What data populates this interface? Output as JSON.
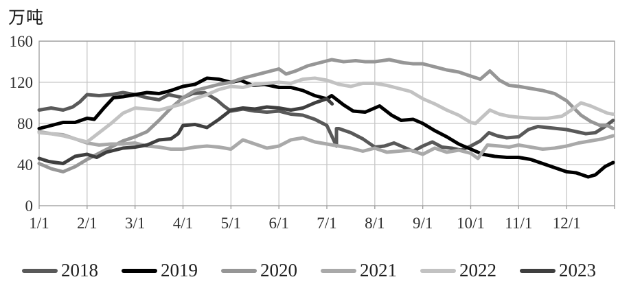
{
  "chart_data": {
    "type": "line",
    "unit_label": "万吨",
    "x_tick_labels": [
      "1/1",
      "2/1",
      "3/1",
      "4/1",
      "5/1",
      "6/1",
      "7/1",
      "8/1",
      "9/1",
      "10/1",
      "11/1",
      "12/1"
    ],
    "y_ticks": [
      0,
      40,
      80,
      120,
      160
    ],
    "ylim": [
      0,
      160
    ],
    "x_months": 12,
    "grid": true,
    "legend_position": "bottom",
    "axis_color": "#9a9a9a",
    "grid_color": "#c6c6c6",
    "tick_label_color": "#2e2e2e",
    "series": [
      {
        "name": "2018",
        "color": "#595959",
        "points": [
          [
            0,
            93
          ],
          [
            0.25,
            95
          ],
          [
            0.5,
            93
          ],
          [
            0.7,
            96
          ],
          [
            0.85,
            101
          ],
          [
            1.0,
            108
          ],
          [
            1.25,
            107
          ],
          [
            1.5,
            108
          ],
          [
            1.75,
            110
          ],
          [
            2.0,
            108
          ],
          [
            2.25,
            105
          ],
          [
            2.5,
            103
          ],
          [
            2.7,
            108
          ],
          [
            3.0,
            105
          ],
          [
            3.2,
            109
          ],
          [
            3.45,
            110
          ],
          [
            3.7,
            103
          ],
          [
            3.85,
            97
          ],
          [
            4.0,
            92
          ],
          [
            4.25,
            94
          ],
          [
            4.5,
            92
          ],
          [
            4.75,
            91
          ],
          [
            5.0,
            92
          ],
          [
            5.25,
            89
          ],
          [
            5.5,
            88
          ],
          [
            5.75,
            84
          ],
          [
            6.0,
            78
          ],
          [
            6.2,
            58
          ],
          [
            6.2,
            75
          ],
          [
            6.25,
            75
          ],
          [
            6.5,
            71
          ],
          [
            6.75,
            65
          ],
          [
            7.0,
            57
          ],
          [
            7.2,
            58
          ],
          [
            7.4,
            61
          ],
          [
            7.6,
            57
          ],
          [
            7.8,
            53
          ],
          [
            8.0,
            58
          ],
          [
            8.2,
            62
          ],
          [
            8.4,
            57
          ],
          [
            8.6,
            56
          ],
          [
            8.8,
            54
          ],
          [
            9.0,
            58
          ],
          [
            9.2,
            63
          ],
          [
            9.38,
            71
          ],
          [
            9.55,
            68
          ],
          [
            9.75,
            66
          ],
          [
            10.0,
            67
          ],
          [
            10.2,
            74
          ],
          [
            10.4,
            77
          ],
          [
            10.6,
            76
          ],
          [
            10.8,
            75
          ],
          [
            11.0,
            74
          ],
          [
            11.2,
            72
          ],
          [
            11.4,
            70
          ],
          [
            11.6,
            71
          ],
          [
            11.8,
            77
          ],
          [
            11.97,
            83
          ]
        ]
      },
      {
        "name": "2019",
        "color": "#000000",
        "points": [
          [
            0,
            75
          ],
          [
            0.25,
            78
          ],
          [
            0.5,
            81
          ],
          [
            0.75,
            81
          ],
          [
            1.0,
            85
          ],
          [
            1.15,
            84
          ],
          [
            1.35,
            95
          ],
          [
            1.55,
            105
          ],
          [
            1.75,
            106
          ],
          [
            2.0,
            108
          ],
          [
            2.25,
            110
          ],
          [
            2.5,
            109
          ],
          [
            2.75,
            112
          ],
          [
            3.0,
            116
          ],
          [
            3.25,
            118
          ],
          [
            3.5,
            124
          ],
          [
            3.75,
            123
          ],
          [
            4.0,
            120
          ],
          [
            4.2,
            122
          ],
          [
            4.45,
            117
          ],
          [
            4.7,
            118
          ],
          [
            5.0,
            115
          ],
          [
            5.25,
            115
          ],
          [
            5.5,
            112
          ],
          [
            5.75,
            107
          ],
          [
            6.0,
            104
          ],
          [
            6.1,
            107
          ],
          [
            6.35,
            98
          ],
          [
            6.55,
            92
          ],
          [
            6.8,
            91
          ],
          [
            7.0,
            95
          ],
          [
            7.1,
            97
          ],
          [
            7.35,
            88
          ],
          [
            7.55,
            83
          ],
          [
            7.8,
            84
          ],
          [
            8.0,
            80
          ],
          [
            8.25,
            73
          ],
          [
            8.5,
            67
          ],
          [
            8.75,
            60
          ],
          [
            9.0,
            55
          ],
          [
            9.25,
            50
          ],
          [
            9.5,
            48
          ],
          [
            9.75,
            47
          ],
          [
            10.0,
            47
          ],
          [
            10.25,
            45
          ],
          [
            10.5,
            41
          ],
          [
            10.75,
            37
          ],
          [
            11.0,
            33
          ],
          [
            11.2,
            32
          ],
          [
            11.45,
            28
          ],
          [
            11.6,
            30
          ],
          [
            11.8,
            38
          ],
          [
            11.97,
            42
          ]
        ]
      },
      {
        "name": "2020",
        "color": "#969696",
        "points": [
          [
            0,
            41
          ],
          [
            0.25,
            36
          ],
          [
            0.5,
            33
          ],
          [
            0.75,
            38
          ],
          [
            1.0,
            45
          ],
          [
            1.25,
            51
          ],
          [
            1.5,
            57
          ],
          [
            1.75,
            63
          ],
          [
            2.0,
            67
          ],
          [
            2.25,
            72
          ],
          [
            2.5,
            83
          ],
          [
            2.75,
            95
          ],
          [
            3.0,
            105
          ],
          [
            3.25,
            112
          ],
          [
            3.5,
            115
          ],
          [
            3.75,
            118
          ],
          [
            4.0,
            120
          ],
          [
            4.25,
            124
          ],
          [
            4.5,
            127
          ],
          [
            4.75,
            130
          ],
          [
            5.0,
            133
          ],
          [
            5.15,
            128
          ],
          [
            5.35,
            131
          ],
          [
            5.6,
            136
          ],
          [
            5.85,
            139
          ],
          [
            6.1,
            142
          ],
          [
            6.35,
            140
          ],
          [
            6.6,
            141
          ],
          [
            6.8,
            140
          ],
          [
            7.0,
            140
          ],
          [
            7.3,
            142
          ],
          [
            7.6,
            139
          ],
          [
            7.8,
            138
          ],
          [
            8.0,
            138
          ],
          [
            8.25,
            135
          ],
          [
            8.5,
            132
          ],
          [
            8.75,
            130
          ],
          [
            9.0,
            126
          ],
          [
            9.2,
            123
          ],
          [
            9.4,
            131
          ],
          [
            9.6,
            122
          ],
          [
            9.8,
            117
          ],
          [
            10.0,
            116
          ],
          [
            10.25,
            114
          ],
          [
            10.5,
            112
          ],
          [
            10.75,
            109
          ],
          [
            11.0,
            102
          ],
          [
            11.15,
            95
          ],
          [
            11.3,
            88
          ],
          [
            11.5,
            82
          ],
          [
            11.7,
            78
          ],
          [
            11.85,
            78
          ],
          [
            11.97,
            75
          ]
        ]
      },
      {
        "name": "2021",
        "color": "#a9a9a9",
        "points": [
          [
            0,
            72
          ],
          [
            0.25,
            70
          ],
          [
            0.5,
            69
          ],
          [
            0.75,
            65
          ],
          [
            1.0,
            61
          ],
          [
            1.25,
            59
          ],
          [
            1.5,
            60
          ],
          [
            1.75,
            60
          ],
          [
            2.0,
            61
          ],
          [
            2.25,
            58
          ],
          [
            2.5,
            57
          ],
          [
            2.75,
            55
          ],
          [
            3.0,
            55
          ],
          [
            3.25,
            57
          ],
          [
            3.5,
            58
          ],
          [
            3.75,
            57
          ],
          [
            4.0,
            55
          ],
          [
            4.25,
            64
          ],
          [
            4.5,
            60
          ],
          [
            4.75,
            56
          ],
          [
            5.0,
            58
          ],
          [
            5.25,
            64
          ],
          [
            5.5,
            66
          ],
          [
            5.75,
            62
          ],
          [
            6.0,
            60
          ],
          [
            6.25,
            58
          ],
          [
            6.5,
            56
          ],
          [
            6.75,
            53
          ],
          [
            7.0,
            56
          ],
          [
            7.25,
            52
          ],
          [
            7.5,
            53
          ],
          [
            7.75,
            54
          ],
          [
            8.0,
            50
          ],
          [
            8.25,
            56
          ],
          [
            8.5,
            52
          ],
          [
            8.75,
            54
          ],
          [
            9.0,
            51
          ],
          [
            9.15,
            46
          ],
          [
            9.35,
            59
          ],
          [
            9.6,
            58
          ],
          [
            9.8,
            57
          ],
          [
            10.0,
            59
          ],
          [
            10.25,
            57
          ],
          [
            10.5,
            55
          ],
          [
            10.75,
            56
          ],
          [
            11.0,
            58
          ],
          [
            11.25,
            61
          ],
          [
            11.5,
            63
          ],
          [
            11.75,
            65
          ],
          [
            11.97,
            68
          ]
        ]
      },
      {
        "name": "2022",
        "color": "#c2c2c2",
        "points": [
          [
            0,
            71
          ],
          [
            0.25,
            70
          ],
          [
            0.5,
            68
          ],
          [
            0.75,
            65
          ],
          [
            1.0,
            62
          ],
          [
            1.25,
            71
          ],
          [
            1.5,
            80
          ],
          [
            1.75,
            90
          ],
          [
            2.0,
            95
          ],
          [
            2.25,
            94
          ],
          [
            2.5,
            93
          ],
          [
            2.75,
            96
          ],
          [
            3.0,
            99
          ],
          [
            3.25,
            104
          ],
          [
            3.5,
            108
          ],
          [
            3.75,
            113
          ],
          [
            4.0,
            116
          ],
          [
            4.25,
            115
          ],
          [
            4.5,
            118
          ],
          [
            4.75,
            119
          ],
          [
            5.0,
            120
          ],
          [
            5.25,
            119
          ],
          [
            5.5,
            123
          ],
          [
            5.75,
            124
          ],
          [
            6.0,
            122
          ],
          [
            6.25,
            118
          ],
          [
            6.5,
            116
          ],
          [
            6.75,
            119
          ],
          [
            7.0,
            119
          ],
          [
            7.25,
            117
          ],
          [
            7.5,
            114
          ],
          [
            7.75,
            111
          ],
          [
            8.0,
            104
          ],
          [
            8.25,
            99
          ],
          [
            8.5,
            93
          ],
          [
            8.75,
            88
          ],
          [
            9.0,
            81
          ],
          [
            9.1,
            80
          ],
          [
            9.4,
            93
          ],
          [
            9.6,
            89
          ],
          [
            9.8,
            87
          ],
          [
            10.0,
            86
          ],
          [
            10.3,
            85
          ],
          [
            10.6,
            85
          ],
          [
            10.9,
            87
          ],
          [
            11.1,
            93
          ],
          [
            11.3,
            100
          ],
          [
            11.5,
            97
          ],
          [
            11.7,
            93
          ],
          [
            11.85,
            90
          ],
          [
            11.97,
            89
          ]
        ]
      },
      {
        "name": "2023",
        "color": "#3f3f3f",
        "points": [
          [
            0,
            46
          ],
          [
            0.2,
            43
          ],
          [
            0.5,
            41
          ],
          [
            0.75,
            48
          ],
          [
            1.0,
            50
          ],
          [
            1.2,
            47
          ],
          [
            1.4,
            52
          ],
          [
            1.75,
            56
          ],
          [
            2.0,
            57
          ],
          [
            2.25,
            59
          ],
          [
            2.5,
            64
          ],
          [
            2.75,
            65
          ],
          [
            2.9,
            70
          ],
          [
            3.0,
            78
          ],
          [
            3.25,
            79
          ],
          [
            3.5,
            76
          ],
          [
            3.75,
            84
          ],
          [
            4.0,
            93
          ],
          [
            4.25,
            95
          ],
          [
            4.5,
            94
          ],
          [
            4.75,
            96
          ],
          [
            5.0,
            95
          ],
          [
            5.25,
            93
          ],
          [
            5.5,
            95
          ],
          [
            5.75,
            100
          ],
          [
            6.0,
            104
          ],
          [
            6.11,
            99
          ]
        ]
      }
    ]
  }
}
